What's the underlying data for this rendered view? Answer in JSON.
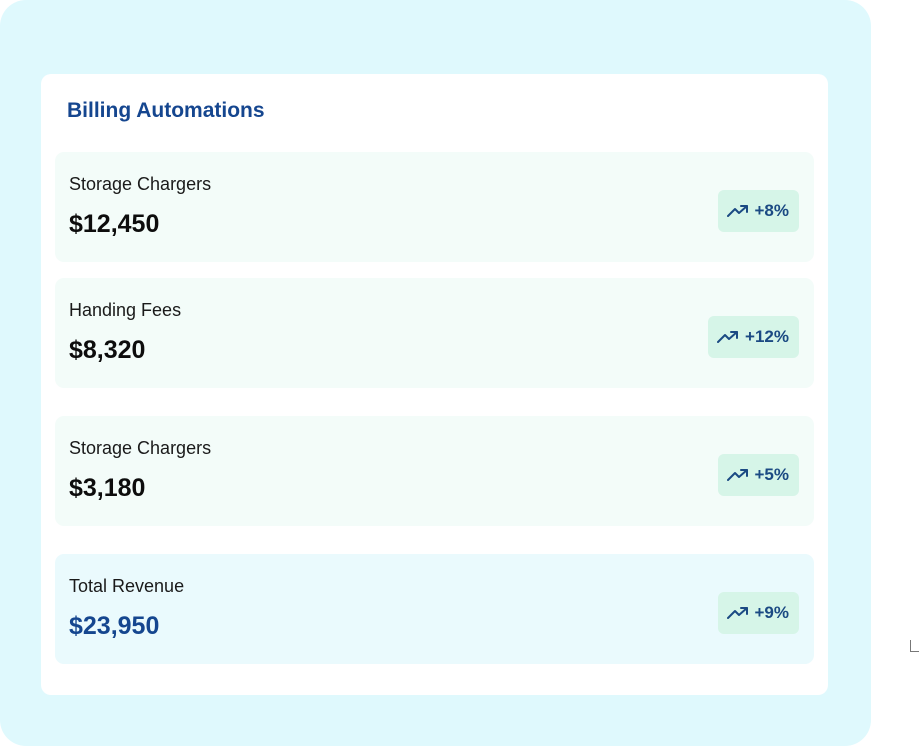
{
  "panel": {
    "title": "Billing Automations"
  },
  "metrics": [
    {
      "label": "Storage Chargers",
      "value": "$12,450",
      "trend": "+8%",
      "trend_icon": "trending-up-icon"
    },
    {
      "label": "Handing Fees",
      "value": "$8,320",
      "trend": "+12%",
      "trend_icon": "trending-up-icon"
    },
    {
      "label": "Storage Chargers",
      "value": "$3,180",
      "trend": "+5%",
      "trend_icon": "trending-up-icon"
    },
    {
      "label": "Total Revenue",
      "value": "$23,950",
      "trend": "+9%",
      "trend_icon": "trending-up-icon"
    }
  ],
  "colors": {
    "outer_background": "#dff9fd",
    "card_background": "#ffffff",
    "metric_background": "#f3fcf9",
    "total_background": "#eafafd",
    "badge_background": "#d6f5e8",
    "accent_blue": "#15468f"
  }
}
